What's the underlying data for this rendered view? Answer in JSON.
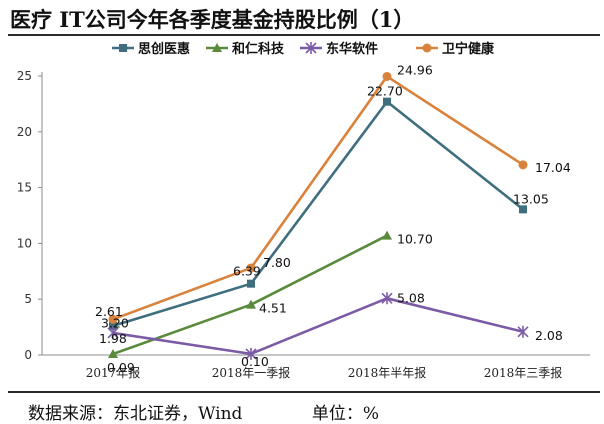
{
  "title": "医疗 IT公司今年各季度基金持股比例（1）",
  "footer": {
    "source": "数据来源：东北证券，Wind",
    "unit": "单位：%"
  },
  "chart_data": {
    "type": "line",
    "title": "医疗 IT公司今年各季度基金持股比例（1）",
    "categories": [
      "2017年报",
      "2018年一季报",
      "2018年半年报",
      "2018年三季报"
    ],
    "ylim": [
      0,
      25
    ],
    "yticks": [
      0,
      5,
      10,
      15,
      20,
      25
    ],
    "grid": false,
    "legend": "top",
    "series": [
      {
        "name": "思创医惠",
        "values": [
          2.61,
          6.39,
          22.7,
          13.05
        ],
        "labels": [
          "2.61",
          "6.39",
          "22.70",
          "13.05"
        ],
        "color": "#3f6e7f",
        "marker": "square"
      },
      {
        "name": "和仁科技",
        "values": [
          0.09,
          4.51,
          10.7,
          null
        ],
        "labels": [
          "0.09",
          "4.51",
          "10.70",
          ""
        ],
        "color": "#5a8a3c",
        "marker": "triangle"
      },
      {
        "name": "东华软件",
        "values": [
          1.98,
          0.1,
          5.08,
          2.08
        ],
        "labels": [
          "1.98",
          "0.10",
          "5.08",
          "2.08"
        ],
        "color": "#7b5aa6",
        "marker": "star"
      },
      {
        "name": "卫宁健康",
        "values": [
          3.2,
          7.8,
          24.96,
          17.04
        ],
        "labels": [
          "3.20",
          "7.80",
          "24.96",
          "17.04"
        ],
        "color": "#d9823b",
        "marker": "circle"
      }
    ]
  }
}
